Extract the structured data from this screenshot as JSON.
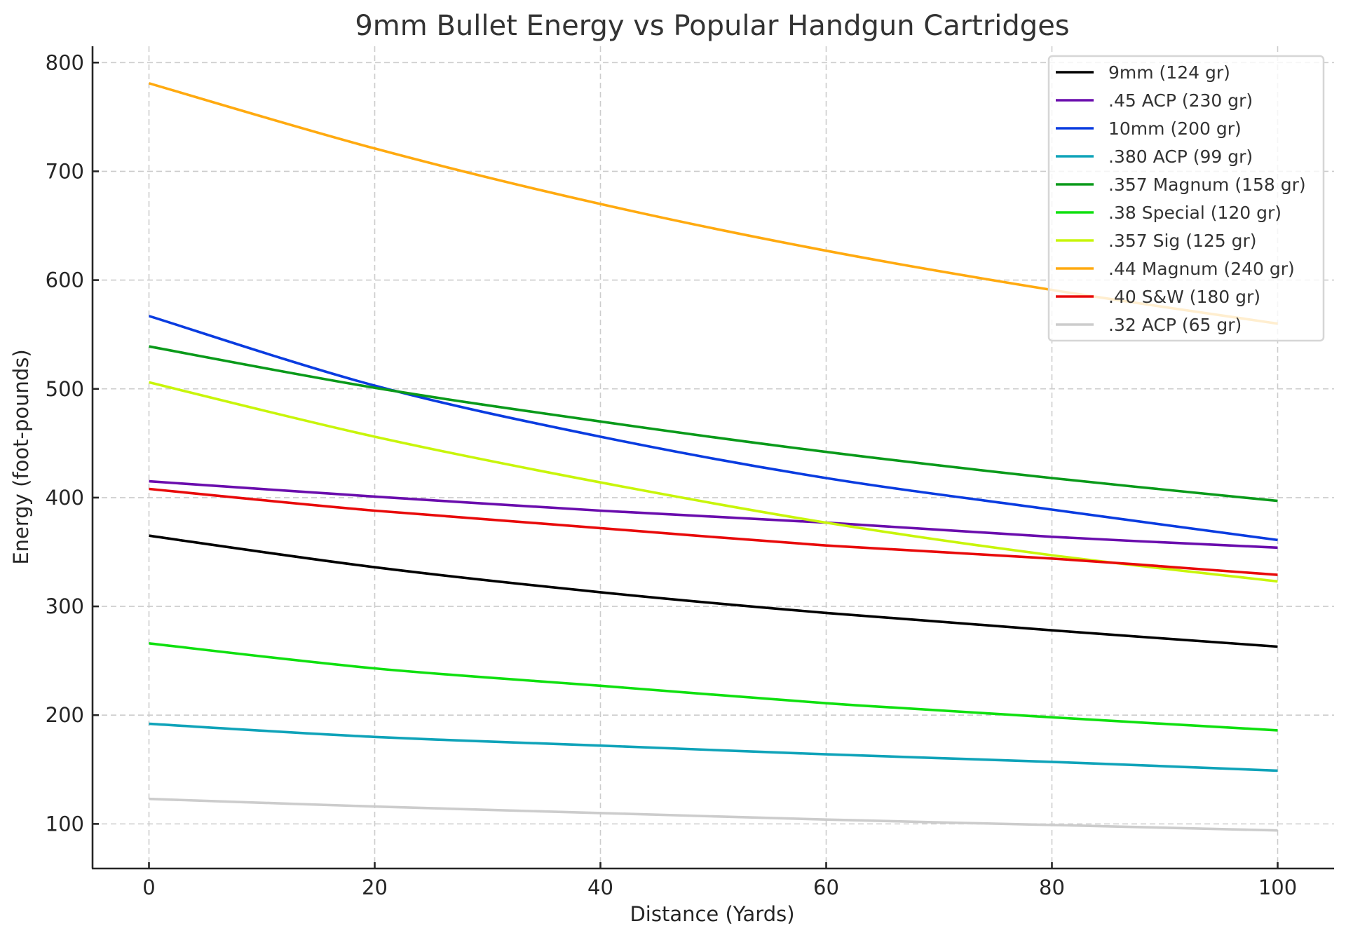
{
  "chart_data": {
    "type": "line",
    "title": "9mm Bullet Energy vs Popular Handgun Cartridges",
    "xlabel": "Distance (Yards)",
    "ylabel": "Energy (foot-pounds)",
    "xlim": [
      -5,
      105
    ],
    "ylim": [
      59,
      815
    ],
    "xticks": [
      0,
      20,
      40,
      60,
      80,
      100
    ],
    "yticks": [
      100,
      200,
      300,
      400,
      500,
      600,
      700,
      800
    ],
    "grid": true,
    "legend_position": "upper right",
    "x": [
      0,
      20,
      40,
      60,
      80,
      100
    ],
    "series": [
      {
        "name": "9mm (124 gr)",
        "color": "#000000",
        "values": [
          365,
          336,
          313,
          294,
          278,
          263
        ]
      },
      {
        "name": ".45 ACP (230 gr)",
        "color": "#6a0dad",
        "values": [
          415,
          401,
          388,
          377,
          364,
          354
        ]
      },
      {
        "name": "10mm (200 gr)",
        "color": "#0a3ce0",
        "values": [
          567,
          503,
          456,
          418,
          389,
          361
        ]
      },
      {
        "name": ".380 ACP (99 gr)",
        "color": "#0fa3b9",
        "values": [
          192,
          180,
          172,
          164,
          157,
          149
        ]
      },
      {
        "name": ".357 Magnum (158 gr)",
        "color": "#0a9a1a",
        "values": [
          539,
          501,
          470,
          442,
          418,
          397
        ]
      },
      {
        "name": ".38 Special (120 gr)",
        "color": "#0fe00f",
        "values": [
          266,
          243,
          227,
          211,
          198,
          186
        ]
      },
      {
        "name": ".357 Sig (125 gr)",
        "color": "#c8f50a",
        "values": [
          506,
          456,
          414,
          377,
          347,
          323
        ]
      },
      {
        "name": ".44 Magnum (240 gr)",
        "color": "#ffaa10",
        "values": [
          781,
          721,
          670,
          627,
          591,
          560
        ]
      },
      {
        "name": ".40 S&W (180 gr)",
        "color": "#e80a0a",
        "values": [
          408,
          388,
          372,
          356,
          344,
          329
        ]
      },
      {
        "name": ".32 ACP (65 gr)",
        "color": "#cccccc",
        "values": [
          123,
          116,
          110,
          104,
          99,
          94
        ]
      }
    ]
  }
}
